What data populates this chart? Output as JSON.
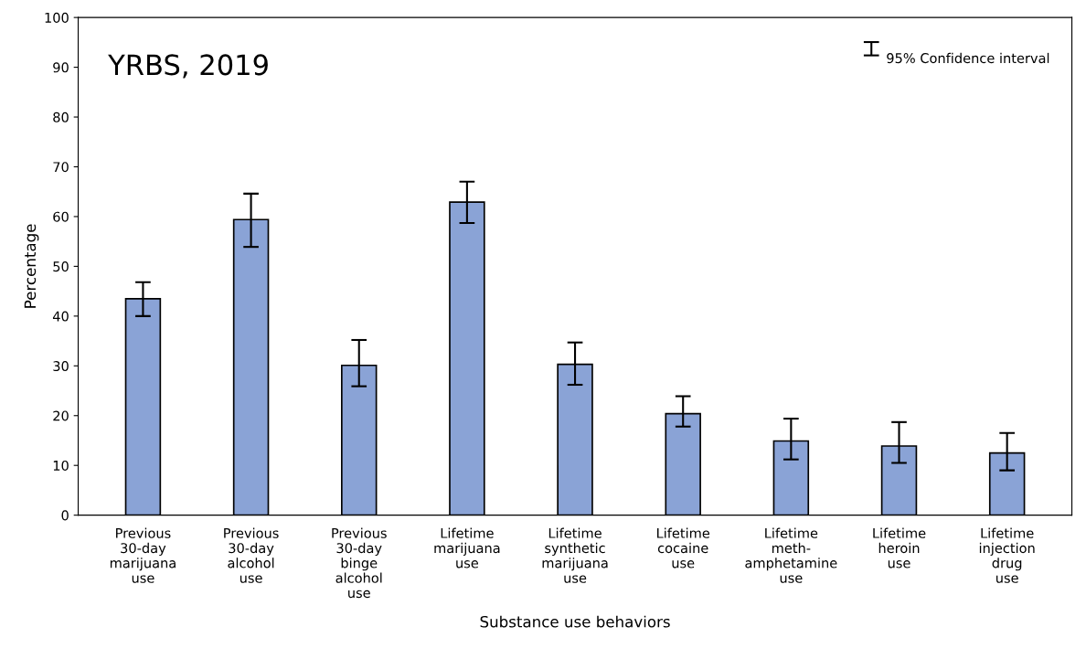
{
  "chart_data": {
    "type": "bar",
    "xlabel": "Substance use behaviors",
    "ylabel": "Percentage",
    "categories": [
      "Previous\n30-day\nmarijuana\nuse",
      "Previous\n30-day\nalcohol\nuse",
      "Previous\n30-day\nbinge\nalcohol\nuse",
      "Lifetime\nmarijuana\nuse",
      "Lifetime\nsynthetic\nmarijuana\nuse",
      "Lifetime\ncocaine\nuse",
      "Lifetime\nmeth-\namphetamine\nuse",
      "Lifetime\nheroin\nuse",
      "Lifetime\ninjection\ndrug\nuse"
    ],
    "values": [
      43.5,
      59.4,
      30.1,
      62.9,
      30.3,
      20.4,
      14.9,
      13.9,
      12.5
    ],
    "errors": [
      [
        40.0,
        46.8
      ],
      [
        53.9,
        64.6
      ],
      [
        25.9,
        35.2
      ],
      [
        58.7,
        67.0
      ],
      [
        26.2,
        34.7
      ],
      [
        17.8,
        23.9
      ],
      [
        11.2,
        19.4
      ],
      [
        10.5,
        18.7
      ],
      [
        9.0,
        16.5
      ]
    ],
    "color": "#8aa3d6",
    "ylim": [
      0,
      100
    ],
    "yticks": [
      0,
      10,
      20,
      30,
      40,
      50,
      60,
      70,
      80,
      90,
      100
    ],
    "annotations": [
      "YRBS, 2019",
      "95% Confidence interval"
    ],
    "grid": false
  }
}
